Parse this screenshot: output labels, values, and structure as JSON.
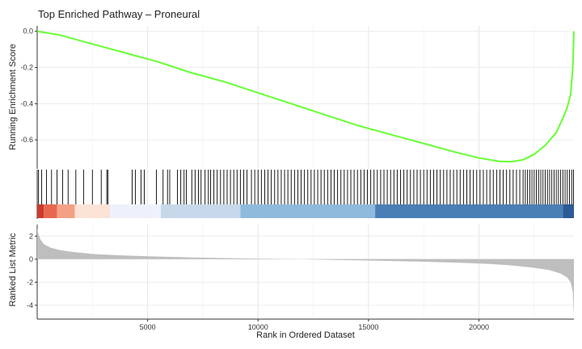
{
  "chart_data": {
    "type": "line",
    "title": "Top Enriched Pathway – Proneural",
    "xlabel": "Rank in Ordered Dataset",
    "xlim": [
      0,
      24300
    ],
    "x_ticks": [
      5000,
      10000,
      15000,
      20000
    ],
    "x_tick_labels": [
      "5000",
      "10000",
      "15000",
      "20000"
    ],
    "panels": [
      {
        "name": "running-enrichment-score",
        "ylabel": "Running Enrichment Score",
        "ylim": [
          -0.76,
          0.03
        ],
        "y_ticks": [
          0.0,
          -0.2,
          -0.4,
          -0.6
        ],
        "y_tick_labels": [
          "0.0",
          "-0.2",
          "-0.4",
          "-0.6"
        ],
        "line_color": "#66ff33",
        "x": [
          0,
          1000,
          2500,
          4000,
          5500,
          7000,
          8500,
          10000,
          11500,
          13000,
          14500,
          16000,
          17500,
          19000,
          20000,
          20500,
          21000,
          21500,
          22000,
          22500,
          23000,
          23500,
          23800,
          24000,
          24150,
          24250,
          24300
        ],
        "y": [
          0.0,
          -0.02,
          -0.07,
          -0.12,
          -0.17,
          -0.23,
          -0.28,
          -0.34,
          -0.4,
          -0.46,
          -0.52,
          -0.57,
          -0.62,
          -0.67,
          -0.7,
          -0.71,
          -0.72,
          -0.72,
          -0.71,
          -0.68,
          -0.63,
          -0.56,
          -0.48,
          -0.42,
          -0.35,
          -0.2,
          0.0
        ]
      },
      {
        "name": "gene-hits",
        "hit_positions": [
          60,
          200,
          420,
          650,
          900,
          1150,
          1400,
          1750,
          2100,
          2500,
          2900,
          3150,
          3200,
          4300,
          4450,
          4700,
          4850,
          5400,
          5700,
          5900,
          6000,
          6350,
          6500,
          6650,
          6750,
          7000,
          7150,
          7300,
          7420,
          7600,
          7750,
          7850,
          8000,
          8150,
          8300,
          8450,
          8600,
          8750,
          8900,
          9050,
          9200,
          9350,
          9500,
          9700,
          9850,
          10000,
          10150,
          10300,
          10450,
          10600,
          10750,
          10900,
          11050,
          11200,
          11350,
          11500,
          11650,
          11800,
          11950,
          12100,
          12250,
          12400,
          12550,
          12700,
          12850,
          13000,
          13150,
          13300,
          13450,
          13600,
          13750,
          13900,
          14050,
          14200,
          14350,
          14500,
          14650,
          14800,
          14950,
          15100,
          15250,
          15400,
          15550,
          15700,
          15850,
          16000,
          16150,
          16300,
          16450,
          16600,
          16750,
          16900,
          17050,
          17200,
          17350,
          17500,
          17650,
          17800,
          17950,
          18100,
          18250,
          18400,
          18550,
          18700,
          18850,
          19000,
          19150,
          19300,
          19450,
          19600,
          19750,
          19900,
          20050,
          20200,
          20350,
          20500,
          20650,
          20800,
          20950,
          21100,
          21250,
          21400,
          21550,
          21700,
          21850,
          22000,
          22100,
          22200,
          22300,
          22400,
          22500,
          22600,
          22700,
          22800,
          22900,
          23000,
          23100,
          23200,
          23300,
          23400,
          23500,
          23600,
          23700,
          23800,
          23900,
          24000,
          24100,
          24200,
          24280
        ],
        "color_bar": [
          {
            "from": 0,
            "to": 300,
            "color": "#cb3a2a"
          },
          {
            "from": 300,
            "to": 900,
            "color": "#e8684f"
          },
          {
            "from": 900,
            "to": 1700,
            "color": "#f3a184"
          },
          {
            "from": 1700,
            "to": 3300,
            "color": "#fbe3d6"
          },
          {
            "from": 3300,
            "to": 5600,
            "color": "#eef1fb"
          },
          {
            "from": 5600,
            "to": 9200,
            "color": "#c7d8ea"
          },
          {
            "from": 9200,
            "to": 15300,
            "color": "#8fbadc"
          },
          {
            "from": 15300,
            "to": 23800,
            "color": "#4a7fb5"
          },
          {
            "from": 23800,
            "to": 24300,
            "color": "#2c5a96"
          }
        ]
      },
      {
        "name": "ranked-list-metric",
        "ylabel": "Ranked List Metric",
        "ylim": [
          -5.2,
          3.0
        ],
        "y_ticks": [
          2,
          0,
          -2,
          -4
        ],
        "y_tick_labels": [
          "2",
          "0",
          "-2",
          "-4"
        ],
        "fill_color": "#bebebe",
        "x": [
          0,
          50,
          150,
          300,
          600,
          1000,
          1500,
          2500,
          3500,
          5000,
          7000,
          9000,
          11000,
          12000,
          13000,
          15000,
          17000,
          19000,
          20500,
          21500,
          22500,
          23200,
          23700,
          24000,
          24150,
          24250,
          24300
        ],
        "y": [
          2.7,
          2.2,
          1.7,
          1.3,
          1.0,
          0.8,
          0.65,
          0.45,
          0.35,
          0.25,
          0.15,
          0.08,
          0.02,
          0.0,
          -0.05,
          -0.12,
          -0.2,
          -0.3,
          -0.42,
          -0.55,
          -0.75,
          -0.95,
          -1.25,
          -1.6,
          -2.0,
          -2.8,
          -5.0
        ]
      }
    ]
  }
}
